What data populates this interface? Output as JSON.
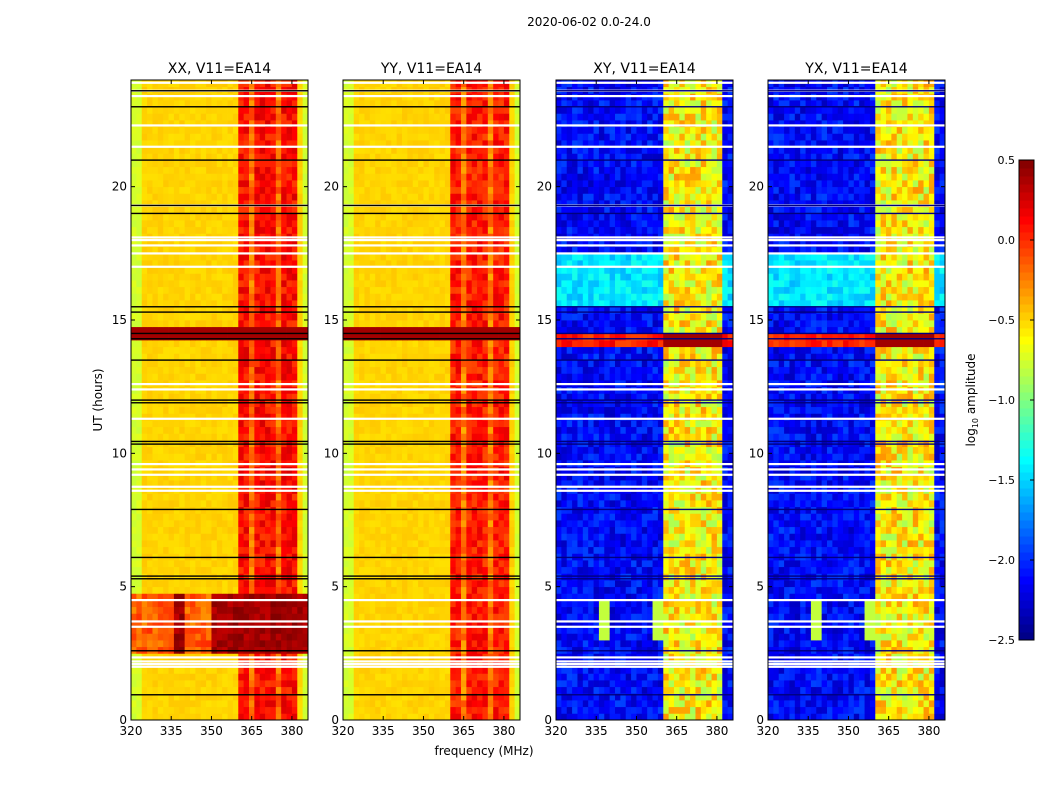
{
  "chart_data": {
    "type": "heatmap",
    "title": "2020-06-02 0.0-24.0",
    "xlabel": "frequency (MHz)",
    "ylabel": "UT (hours)",
    "xlim": [
      320,
      386
    ],
    "ylim": [
      0,
      24
    ],
    "xticks": [
      "320",
      "335",
      "350",
      "365",
      "380"
    ],
    "xtick_values": [
      320,
      335,
      350,
      365,
      380
    ],
    "yticks": [
      "0",
      "5",
      "10",
      "15",
      "20"
    ],
    "ytick_values": [
      0,
      5,
      10,
      15,
      20
    ],
    "colorbar": {
      "label_main": "log",
      "label_sub": "10",
      "label_rest": " amplitude",
      "range": [
        -2.5,
        0.5
      ],
      "ticks": [
        "0.5",
        "0.0",
        "−0.5",
        "−1.0",
        "−1.5",
        "−2.0",
        "−2.5"
      ],
      "tick_values": [
        0.5,
        0.0,
        -0.5,
        -1.0,
        -1.5,
        -2.0,
        -2.5
      ],
      "colormap": "jet"
    },
    "panels": [
      {
        "title": "XX, V11=EA14",
        "kind": "parallel",
        "base": -0.5,
        "band": 0.1,
        "strong_hours": [
          2.6,
          4.7
        ]
      },
      {
        "title": "YY, V11=EA14",
        "kind": "parallel",
        "base": -0.5,
        "band": 0.05,
        "strong_hours": []
      },
      {
        "title": "XY, V11=EA14",
        "kind": "cross",
        "base": -2.2,
        "band": -0.6,
        "strong_hours": [
          14.0,
          14.6
        ]
      },
      {
        "title": "YX, V11=EA14",
        "kind": "cross",
        "base": -2.2,
        "band": -0.6,
        "strong_hours": [
          14.0,
          14.6
        ]
      }
    ],
    "rfi_band_mhz": [
      361,
      381
    ],
    "flagged_white_hours": [
      2.0,
      2.1,
      2.2,
      2.35,
      3.5,
      3.7,
      4.5,
      8.6,
      8.75,
      9.2,
      9.4,
      9.6,
      11.3,
      12.4,
      12.6,
      17.0,
      17.5,
      17.8,
      18.0,
      18.1,
      19.3,
      21.5,
      22.3,
      23.4,
      23.6,
      23.9
    ],
    "black_line_hours": [
      0.95,
      2.6,
      5.3,
      5.4,
      6.1,
      7.9,
      10.35,
      10.45,
      11.9,
      12.0,
      13.5,
      14.3,
      14.5,
      15.3,
      15.5,
      19.0,
      19.3,
      21.0,
      23.0,
      23.6
    ]
  }
}
